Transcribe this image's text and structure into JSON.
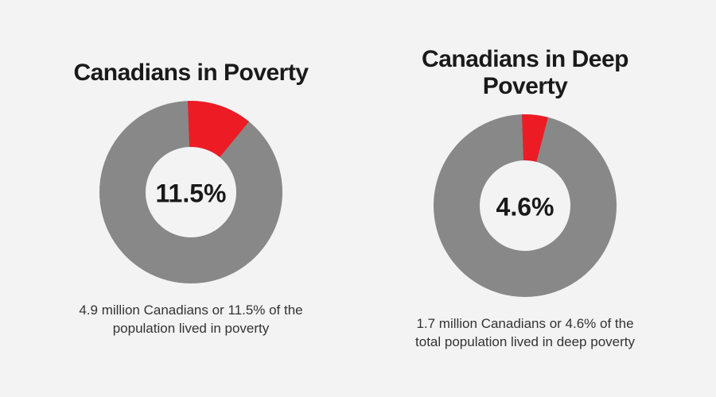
{
  "background_color": "#f3f3f3",
  "panels": [
    {
      "title": "Canadians in Poverty",
      "title_fontsize": 30,
      "donut": {
        "type": "donut",
        "percent": 11.5,
        "size": 230,
        "thickness": 58,
        "start_angle_deg": -2,
        "slice_color": "#ed1c24",
        "ring_color": "#888888",
        "center_label": "11.5%",
        "center_fontsize": 32
      },
      "caption": "4.9 million Canadians or 11.5% of the population lived in poverty",
      "caption_fontsize": 17
    },
    {
      "title": "Canadians in Deep Poverty",
      "title_fontsize": 30,
      "donut": {
        "type": "donut",
        "percent": 4.6,
        "size": 230,
        "thickness": 58,
        "start_angle_deg": -2,
        "slice_color": "#ed1c24",
        "ring_color": "#888888",
        "center_label": "4.6%",
        "center_fontsize": 32
      },
      "caption": "1.7 million Canadians or 4.6% of the total population lived in deep poverty",
      "caption_fontsize": 17
    }
  ]
}
